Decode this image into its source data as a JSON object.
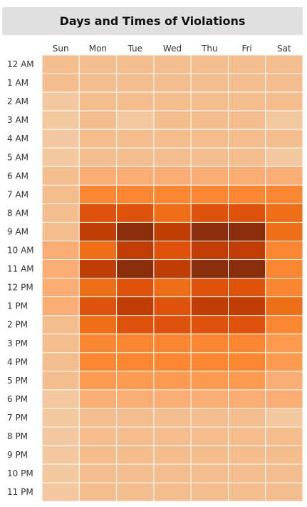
{
  "chart_data": {
    "type": "heatmap",
    "title": "Days and Times of Violations",
    "x_categories": [
      "Sun",
      "Mon",
      "Tue",
      "Wed",
      "Thu",
      "Fri",
      "Sat"
    ],
    "y_categories": [
      "12 AM",
      "1 AM",
      "2 AM",
      "3 AM",
      "4 AM",
      "5 AM",
      "6 AM",
      "7 AM",
      "8 AM",
      "9 AM",
      "10 AM",
      "11 AM",
      "12 PM",
      "1 PM",
      "2 PM",
      "3 PM",
      "4 PM",
      "5 PM",
      "6 PM",
      "7 PM",
      "8 PM",
      "9 PM",
      "10 PM",
      "11 PM"
    ],
    "values": [
      [
        2,
        2,
        2,
        2,
        2,
        2,
        2
      ],
      [
        2,
        2,
        2,
        2,
        2,
        2,
        2
      ],
      [
        1,
        2,
        2,
        2,
        2,
        2,
        2
      ],
      [
        1,
        2,
        1,
        2,
        2,
        2,
        1
      ],
      [
        1,
        2,
        2,
        2,
        2,
        2,
        2
      ],
      [
        1,
        2,
        2,
        2,
        2,
        2,
        1
      ],
      [
        2,
        3,
        3,
        3,
        3,
        3,
        3
      ],
      [
        2,
        5,
        5,
        5,
        5,
        5,
        5
      ],
      [
        2,
        7,
        7,
        6,
        7,
        7,
        6
      ],
      [
        2,
        8,
        9,
        8,
        9,
        9,
        6
      ],
      [
        3,
        6,
        8,
        7,
        8,
        8,
        5
      ],
      [
        3,
        8,
        9,
        8,
        9,
        9,
        5
      ],
      [
        3,
        6,
        7,
        6,
        7,
        7,
        5
      ],
      [
        3,
        7,
        8,
        7,
        8,
        8,
        6
      ],
      [
        2,
        6,
        7,
        7,
        7,
        7,
        5
      ],
      [
        2,
        5,
        5,
        5,
        5,
        5,
        4
      ],
      [
        2,
        5,
        5,
        5,
        5,
        5,
        4
      ],
      [
        2,
        4,
        4,
        4,
        4,
        4,
        3
      ],
      [
        1,
        3,
        3,
        3,
        3,
        3,
        3
      ],
      [
        1,
        2,
        2,
        2,
        2,
        2,
        1
      ],
      [
        1,
        2,
        2,
        2,
        2,
        2,
        2
      ],
      [
        1,
        2,
        2,
        2,
        2,
        2,
        2
      ],
      [
        1,
        2,
        2,
        2,
        2,
        2,
        2
      ],
      [
        1,
        2,
        2,
        2,
        2,
        2,
        2
      ]
    ],
    "value_range": [
      1,
      9
    ],
    "color_scale": [
      "#f3c79f",
      "#f4bd8e",
      "#f9ac73",
      "#fc9a50",
      "#fa8632",
      "#ee6d17",
      "#de520c",
      "#c03e06",
      "#8a2d0d"
    ],
    "grid": true,
    "legend": false
  }
}
